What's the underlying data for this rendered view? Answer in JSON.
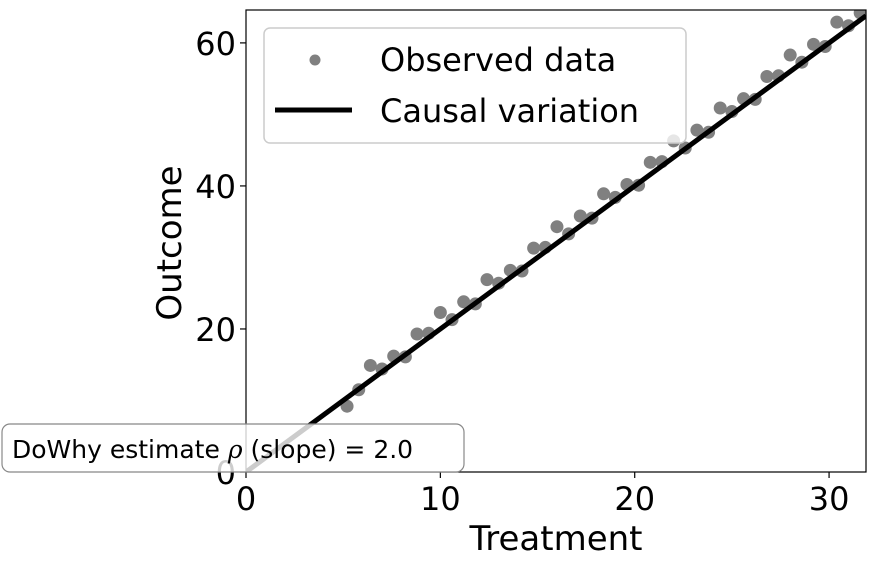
{
  "chart_data": {
    "type": "scatter",
    "xlabel": "Treatment",
    "ylabel": "Outcome",
    "xlim": [
      0,
      31.9
    ],
    "ylim": [
      0,
      64.6
    ],
    "xticks": [
      0,
      10,
      20,
      30
    ],
    "yticks": [
      0,
      20,
      40,
      60
    ],
    "grid": false,
    "legend_placement": "upper-left",
    "series": [
      {
        "name": "Observed data",
        "kind": "scatter",
        "color": "#808080",
        "x": [
          5.2,
          5.8,
          6.4,
          7.0,
          7.6,
          8.2,
          8.8,
          9.4,
          10.0,
          10.6,
          11.2,
          11.8,
          12.4,
          13.0,
          13.6,
          14.2,
          14.8,
          15.4,
          16.0,
          16.6,
          17.2,
          17.8,
          18.4,
          19.0,
          19.6,
          20.2,
          20.8,
          21.4,
          22.0,
          22.6,
          23.2,
          23.8,
          24.4,
          25.0,
          25.6,
          26.2,
          26.8,
          27.4,
          28.0,
          28.6,
          29.2,
          29.8,
          30.4,
          31.0,
          31.6
        ],
        "y": [
          9.2,
          11.5,
          14.9,
          14.4,
          16.2,
          16.1,
          19.3,
          19.4,
          22.3,
          21.3,
          23.8,
          23.5,
          26.9,
          26.4,
          28.2,
          28.1,
          31.3,
          31.4,
          34.3,
          33.3,
          35.8,
          35.5,
          38.9,
          38.4,
          40.2,
          40.1,
          43.3,
          43.4,
          46.3,
          45.3,
          47.8,
          47.5,
          50.9,
          50.4,
          52.2,
          52.1,
          55.3,
          55.4,
          58.3,
          57.3,
          59.8,
          59.5,
          62.9,
          62.4,
          64.2
        ]
      },
      {
        "name": "Causal variation",
        "kind": "line",
        "color": "#000000",
        "x": [
          0,
          31.9
        ],
        "y": [
          0,
          63.8
        ]
      }
    ],
    "annotation": {
      "prefix": "DoWhy estimate ",
      "symbol": "ρ",
      "suffix": " (slope) = 2.0"
    }
  }
}
